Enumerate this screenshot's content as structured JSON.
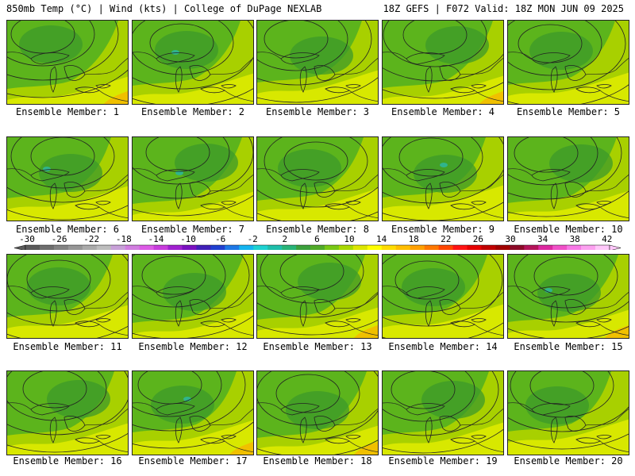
{
  "header": {
    "left": "850mb Temp (°C) | Wind (kts) | College of DuPage NEXLAB",
    "right": "18Z GEFS | F072 Valid: 18Z MON JUN 09 2025"
  },
  "colors": {
    "warm_yellow": "#d8e800",
    "yellow_green": "#a8d000",
    "green": "#5cb41c",
    "dark_green": "#3c9a2a",
    "teal": "#30b48c",
    "orange": "#f0c000",
    "contour": "#222222"
  },
  "members": [
    {
      "label": "Ensemble Member: 1"
    },
    {
      "label": "Ensemble Member: 2"
    },
    {
      "label": "Ensemble Member: 3"
    },
    {
      "label": "Ensemble Member: 4"
    },
    {
      "label": "Ensemble Member: 5"
    },
    {
      "label": "Ensemble Member: 6"
    },
    {
      "label": "Ensemble Member: 7"
    },
    {
      "label": "Ensemble Member: 8"
    },
    {
      "label": "Ensemble Member: 9"
    },
    {
      "label": "Ensemble Member: 10"
    },
    {
      "label": "Ensemble Member: 11"
    },
    {
      "label": "Ensemble Member: 12"
    },
    {
      "label": "Ensemble Member: 13"
    },
    {
      "label": "Ensemble Member: 14"
    },
    {
      "label": "Ensemble Member: 15"
    },
    {
      "label": "Ensemble Member: 16"
    },
    {
      "label": "Ensemble Member: 17"
    },
    {
      "label": "Ensemble Member: 18"
    },
    {
      "label": "Ensemble Member: 19"
    },
    {
      "label": "Ensemble Member: 20"
    }
  ],
  "colorbar": {
    "ticks": [
      "-30",
      "-26",
      "-22",
      "-18",
      "-14",
      "-10",
      "-6",
      "-2",
      "2",
      "6",
      "10",
      "14",
      "18",
      "22",
      "26",
      "30",
      "34",
      "38",
      "42"
    ],
    "colors": [
      "#5a5a5a",
      "#6e6e6e",
      "#828282",
      "#969696",
      "#aaaaaa",
      "#bdbdbd",
      "#c8a0d8",
      "#d27ee0",
      "#dc5ae6",
      "#c83cdc",
      "#a020d0",
      "#7a10c0",
      "#4020b8",
      "#2040d0",
      "#1e78e6",
      "#14b4f0",
      "#1ed2d2",
      "#1ebeaa",
      "#28b478",
      "#3ca03c",
      "#50aa28",
      "#78c814",
      "#a8d800",
      "#dce600",
      "#ffff00",
      "#ffdc00",
      "#ffbe00",
      "#ffa000",
      "#ff7800",
      "#ff4600",
      "#ff1414",
      "#e60000",
      "#c00000",
      "#a00000",
      "#8c0a28",
      "#b4145a",
      "#dc28a0",
      "#f050c8",
      "#f878e6",
      "#fca0f0",
      "#ffc8fa"
    ]
  }
}
